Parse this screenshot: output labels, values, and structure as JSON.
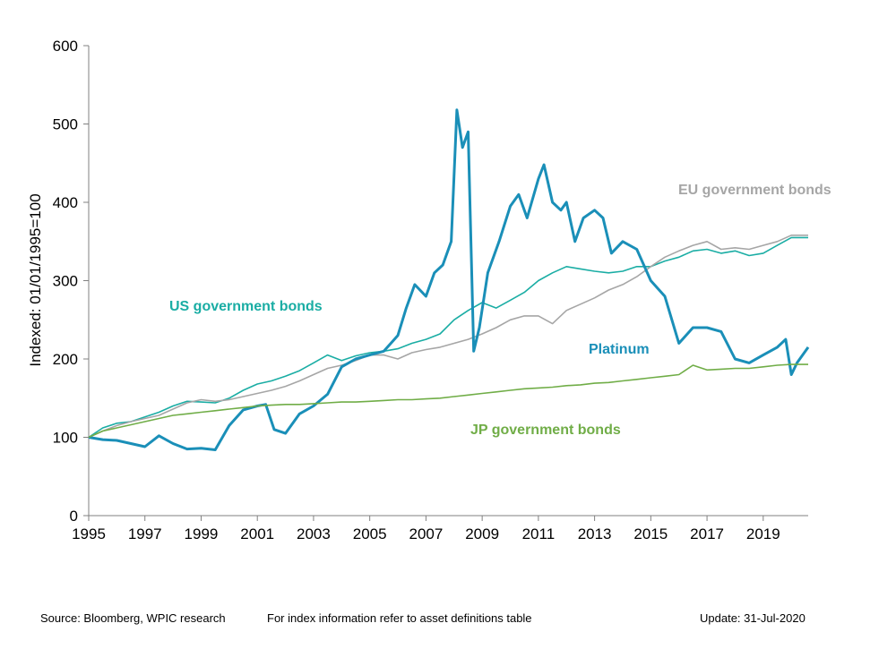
{
  "chart_data": {
    "type": "line",
    "title": "",
    "xlabel": "",
    "ylabel": "Indexed: 01/01/1995=100",
    "xlim": [
      1995,
      2020.6
    ],
    "ylim": [
      0,
      600
    ],
    "x_ticks": [
      "1995",
      "1997",
      "1999",
      "2001",
      "2003",
      "2005",
      "2007",
      "2009",
      "2011",
      "2013",
      "2015",
      "2017",
      "2019"
    ],
    "y_ticks": [
      "0",
      "100",
      "200",
      "300",
      "400",
      "500",
      "600"
    ],
    "grid": false,
    "legend": "inline labels",
    "series": [
      {
        "name": "US government bonds",
        "color": "#1aada4",
        "x": [
          1995,
          1995.5,
          1996,
          1996.5,
          1997,
          1997.5,
          1998,
          1998.5,
          1999,
          1999.5,
          2000,
          2000.5,
          2001,
          2001.5,
          2002,
          2002.5,
          2003,
          2003.5,
          2004,
          2004.5,
          2005,
          2005.5,
          2006,
          2006.5,
          2007,
          2007.5,
          2008,
          2008.5,
          2009,
          2009.5,
          2010,
          2010.5,
          2011,
          2011.5,
          2012,
          2012.5,
          2013,
          2013.5,
          2014,
          2014.5,
          2015,
          2015.5,
          2016,
          2016.5,
          2017,
          2017.5,
          2018,
          2018.5,
          2019,
          2019.5,
          2020,
          2020.6
        ],
        "y": [
          100,
          112,
          118,
          120,
          126,
          132,
          140,
          146,
          145,
          144,
          150,
          160,
          168,
          172,
          178,
          185,
          195,
          205,
          198,
          204,
          208,
          210,
          213,
          220,
          225,
          232,
          250,
          262,
          272,
          265,
          275,
          285,
          300,
          310,
          318,
          315,
          312,
          310,
          312,
          318,
          318,
          325,
          330,
          338,
          340,
          335,
          338,
          332,
          335,
          345,
          355,
          355
        ]
      },
      {
        "name": "EU government bonds",
        "color": "#a6a6a6",
        "x": [
          1995,
          1995.5,
          1996,
          1996.5,
          1997,
          1997.5,
          1998,
          1998.5,
          1999,
          1999.5,
          2000,
          2000.5,
          2001,
          2001.5,
          2002,
          2002.5,
          2003,
          2003.5,
          2004,
          2004.5,
          2005,
          2005.5,
          2006,
          2006.5,
          2007,
          2007.5,
          2008,
          2008.5,
          2009,
          2009.5,
          2010,
          2010.5,
          2011,
          2011.5,
          2012,
          2012.5,
          2013,
          2013.5,
          2014,
          2014.5,
          2015,
          2015.5,
          2016,
          2016.5,
          2017,
          2017.5,
          2018,
          2018.5,
          2019,
          2019.5,
          2020,
          2020.6
        ],
        "y": [
          100,
          108,
          115,
          120,
          124,
          128,
          136,
          144,
          148,
          146,
          148,
          152,
          156,
          160,
          165,
          172,
          180,
          188,
          192,
          198,
          205,
          205,
          200,
          208,
          212,
          215,
          220,
          225,
          232,
          240,
          250,
          255,
          255,
          245,
          262,
          270,
          278,
          288,
          295,
          305,
          318,
          330,
          338,
          345,
          350,
          340,
          342,
          340,
          345,
          350,
          358,
          358
        ]
      },
      {
        "name": "Platinum",
        "color": "#1a8fb8",
        "x": [
          1995,
          1995.5,
          1996,
          1996.5,
          1997,
          1997.5,
          1998,
          1998.5,
          1999,
          1999.5,
          2000,
          2000.5,
          2001,
          2001.3,
          2001.6,
          2002,
          2002.5,
          2003,
          2003.5,
          2004,
          2004.5,
          2005,
          2005.5,
          2006,
          2006.3,
          2006.6,
          2007,
          2007.3,
          2007.6,
          2007.9,
          2008.1,
          2008.3,
          2008.5,
          2008.7,
          2008.9,
          2009.2,
          2009.6,
          2010,
          2010.3,
          2010.6,
          2011,
          2011.2,
          2011.5,
          2011.8,
          2012,
          2012.3,
          2012.6,
          2013,
          2013.3,
          2013.6,
          2014,
          2014.5,
          2015,
          2015.5,
          2016,
          2016.5,
          2017,
          2017.5,
          2018,
          2018.5,
          2019,
          2019.5,
          2019.8,
          2020,
          2020.2,
          2020.6
        ],
        "y": [
          100,
          97,
          96,
          92,
          88,
          102,
          92,
          85,
          86,
          84,
          115,
          135,
          140,
          142,
          110,
          105,
          130,
          140,
          155,
          190,
          200,
          205,
          210,
          230,
          265,
          295,
          280,
          310,
          320,
          350,
          518,
          470,
          490,
          210,
          240,
          310,
          350,
          395,
          410,
          380,
          430,
          448,
          400,
          390,
          400,
          350,
          380,
          390,
          380,
          335,
          350,
          340,
          300,
          280,
          220,
          240,
          240,
          235,
          200,
          195,
          205,
          215,
          225,
          180,
          195,
          215
        ]
      },
      {
        "name": "JP government bonds",
        "color": "#70ad47",
        "x": [
          1995,
          1995.5,
          1996,
          1996.5,
          1997,
          1997.5,
          1998,
          1998.5,
          1999,
          1999.5,
          2000,
          2000.5,
          2001,
          2001.5,
          2002,
          2002.5,
          2003,
          2003.5,
          2004,
          2004.5,
          2005,
          2005.5,
          2006,
          2006.5,
          2007,
          2007.5,
          2008,
          2008.5,
          2009,
          2009.5,
          2010,
          2010.5,
          2011,
          2011.5,
          2012,
          2012.5,
          2013,
          2013.5,
          2014,
          2014.5,
          2015,
          2015.5,
          2016,
          2016.5,
          2017,
          2017.5,
          2018,
          2018.5,
          2019,
          2019.5,
          2020,
          2020.6
        ],
        "y": [
          100,
          108,
          112,
          116,
          120,
          124,
          128,
          130,
          132,
          134,
          136,
          138,
          140,
          141,
          142,
          142,
          143,
          144,
          145,
          145,
          146,
          147,
          148,
          148,
          149,
          150,
          152,
          154,
          156,
          158,
          160,
          162,
          163,
          164,
          166,
          167,
          169,
          170,
          172,
          174,
          176,
          178,
          180,
          192,
          186,
          187,
          188,
          188,
          190,
          192,
          193,
          193
        ]
      }
    ]
  },
  "labels": {
    "us": "US government bonds",
    "eu": "EU government bonds",
    "platinum": "Platinum",
    "jp": "JP government bonds"
  },
  "footer": {
    "source": "Source: Bloomberg, WPIC research",
    "info": "For index information refer to asset definitions table",
    "update": "Update: 31-Jul-2020"
  }
}
